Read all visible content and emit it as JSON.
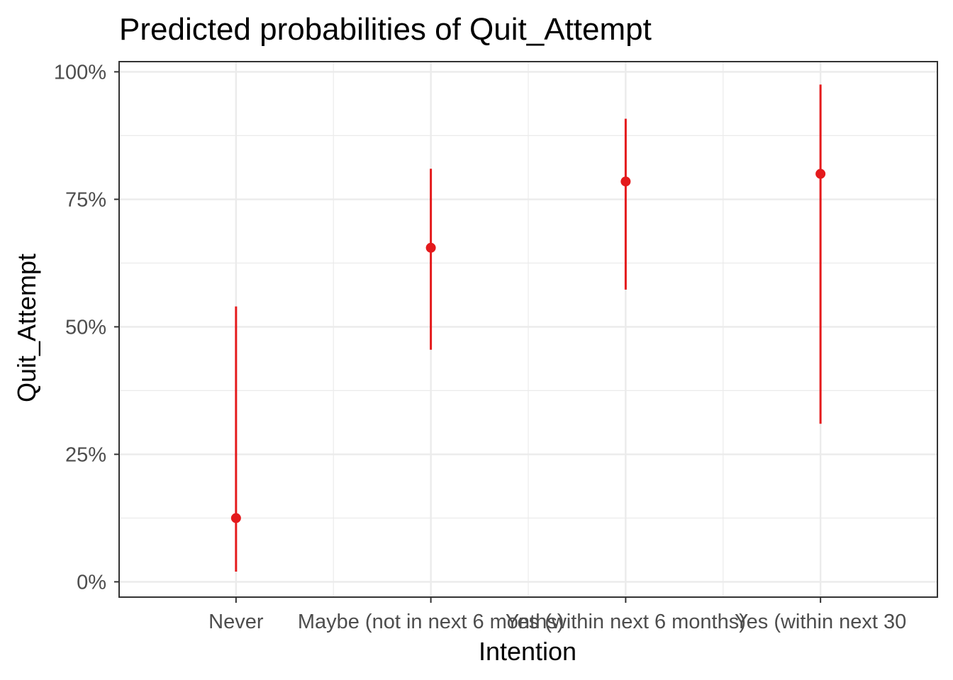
{
  "chart_data": {
    "type": "scatter",
    "title": "Predicted probabilities of Quit_Attempt",
    "xlabel": "Intention",
    "ylabel": "Quit_Attempt",
    "categories": [
      "Never",
      "Maybe (not in next 6 months)",
      "Yes (within next 6 months)",
      "Yes (within next 30"
    ],
    "points": [
      {
        "category": "Never",
        "value": 0.125,
        "lower": 0.02,
        "upper": 0.54
      },
      {
        "category": "Maybe (not in next 6 months)",
        "value": 0.655,
        "lower": 0.455,
        "upper": 0.81
      },
      {
        "category": "Yes (within next 6 months)",
        "value": 0.785,
        "lower": 0.573,
        "upper": 0.908
      },
      {
        "category": "Yes (within next 30",
        "value": 0.8,
        "lower": 0.31,
        "upper": 0.975
      }
    ],
    "y_ticks": [
      0,
      0.25,
      0.5,
      0.75,
      1.0
    ],
    "y_tick_labels": [
      "0%",
      "25%",
      "50%",
      "75%",
      "100%"
    ],
    "ylim": [
      -0.03,
      1.02
    ],
    "grid": true,
    "legend": "none",
    "colors": {
      "series": "#e41a1c",
      "grid": "#ebebeb",
      "panel_border": "#333333"
    }
  }
}
